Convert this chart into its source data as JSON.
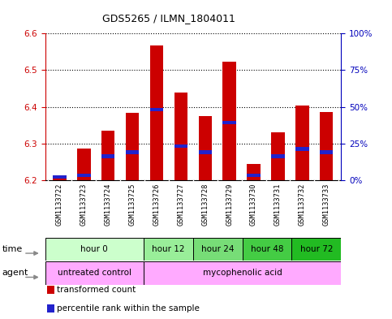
{
  "title": "GDS5265 / ILMN_1804011",
  "samples": [
    "GSM1133722",
    "GSM1133723",
    "GSM1133724",
    "GSM1133725",
    "GSM1133726",
    "GSM1133727",
    "GSM1133728",
    "GSM1133729",
    "GSM1133730",
    "GSM1133731",
    "GSM1133732",
    "GSM1133733"
  ],
  "transformed_counts": [
    6.205,
    6.287,
    6.335,
    6.383,
    6.567,
    6.44,
    6.375,
    6.524,
    6.245,
    6.33,
    6.403,
    6.385
  ],
  "percentile_ranks": [
    1,
    2,
    15,
    18,
    47,
    22,
    18,
    38,
    2,
    15,
    20,
    18
  ],
  "ylim_left": [
    6.2,
    6.6
  ],
  "ylim_right": [
    0,
    100
  ],
  "yticks_left": [
    6.2,
    6.3,
    6.4,
    6.5,
    6.6
  ],
  "yticks_right": [
    0,
    25,
    50,
    75,
    100
  ],
  "ytick_labels_right": [
    "0%",
    "25%",
    "50%",
    "75%",
    "100%"
  ],
  "bar_color": "#cc0000",
  "percentile_color": "#2222cc",
  "bar_bottom": 6.2,
  "time_groups": [
    {
      "label": "hour 0",
      "start": 0,
      "end": 4,
      "color": "#ccffcc"
    },
    {
      "label": "hour 12",
      "start": 4,
      "end": 6,
      "color": "#99ee99"
    },
    {
      "label": "hour 24",
      "start": 6,
      "end": 8,
      "color": "#77dd77"
    },
    {
      "label": "hour 48",
      "start": 8,
      "end": 10,
      "color": "#44cc44"
    },
    {
      "label": "hour 72",
      "start": 10,
      "end": 12,
      "color": "#22bb22"
    }
  ],
  "agent_groups": [
    {
      "label": "untreated control",
      "start": 0,
      "end": 4,
      "color": "#ffaaff"
    },
    {
      "label": "mycophenolic acid",
      "start": 4,
      "end": 12,
      "color": "#ffaaff"
    }
  ],
  "legend_items": [
    {
      "label": "transformed count",
      "color": "#cc0000"
    },
    {
      "label": "percentile rank within the sample",
      "color": "#2222cc"
    }
  ],
  "left_axis_color": "#cc0000",
  "right_axis_color": "#0000bb",
  "bg_color": "#ffffff",
  "grid_color": "#000000"
}
